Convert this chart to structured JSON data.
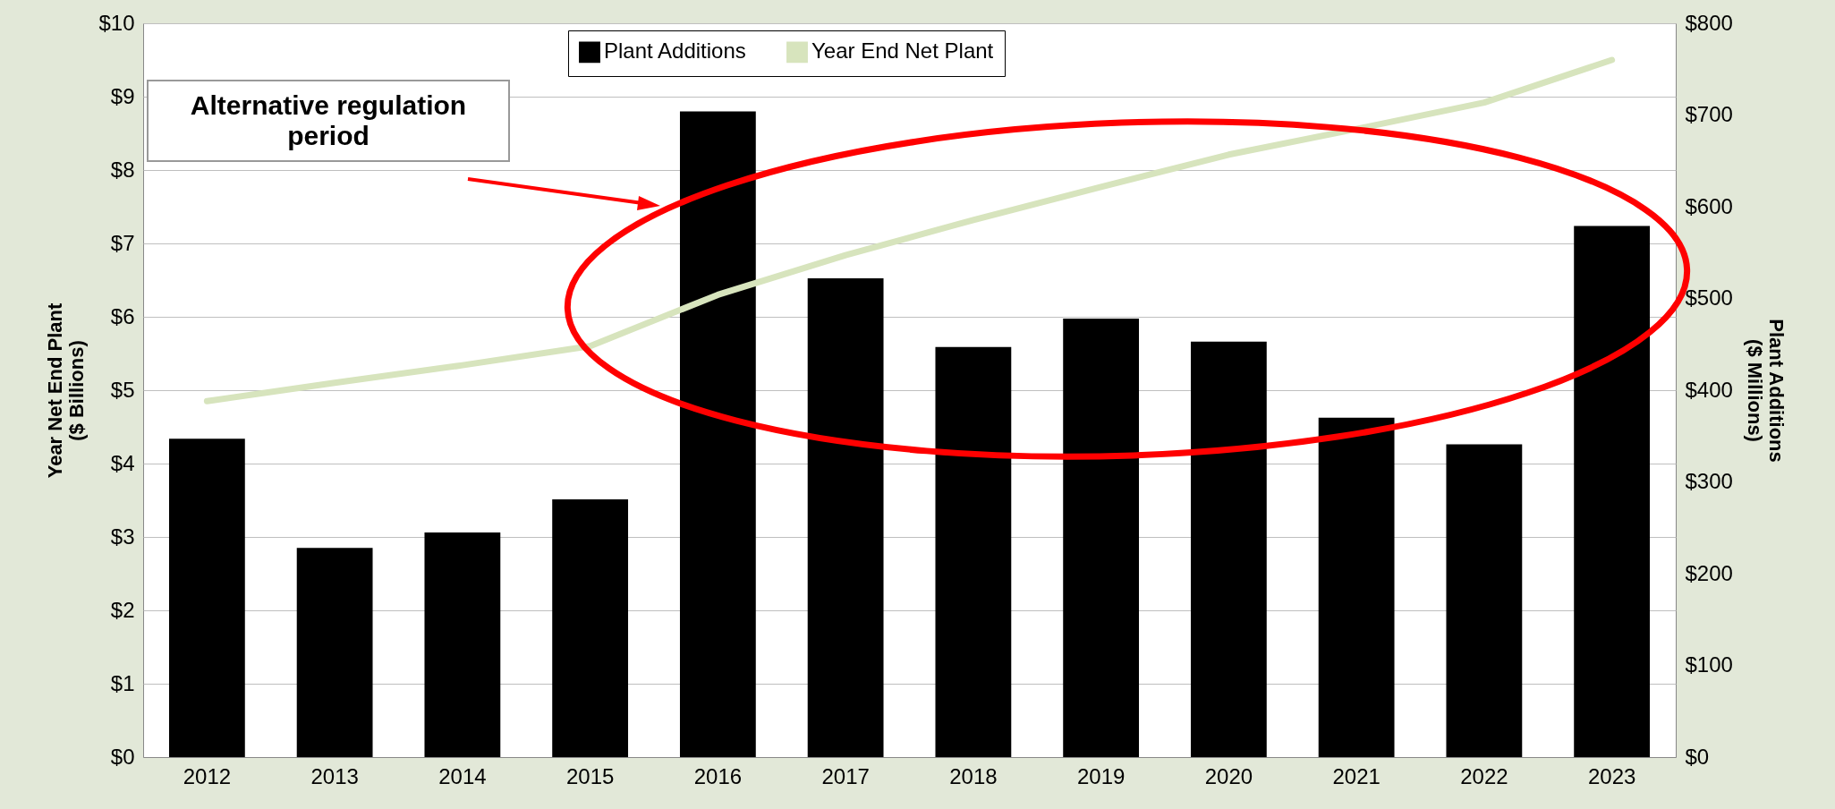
{
  "chart_data": {
    "type": "bar",
    "categories": [
      "2012",
      "2013",
      "2014",
      "2015",
      "2016",
      "2017",
      "2018",
      "2019",
      "2020",
      "2021",
      "2022",
      "2023"
    ],
    "series": [
      {
        "name": "Plant Additions",
        "axis": "y2",
        "color": "#000000",
        "values": [
          347,
          228,
          245,
          281,
          704,
          522,
          447,
          478,
          453,
          370,
          341,
          579
        ]
      },
      {
        "name": "Year End Net Plant",
        "type": "line",
        "color": "#d7e4bd",
        "values": [
          4.85,
          5.1,
          5.34,
          5.6,
          6.3,
          6.84,
          7.32,
          7.77,
          8.21,
          8.56,
          8.92,
          9.5
        ]
      }
    ],
    "ylabel": "Year Net End Plant ($ Billions)",
    "y2label": "Plant Additions ($ Millions)",
    "ylim": [
      0,
      10
    ],
    "yticks": [
      {
        "value": 0,
        "label": "$0"
      },
      {
        "value": 1,
        "label": "$1"
      },
      {
        "value": 2,
        "label": "$2"
      },
      {
        "value": 3,
        "label": "$3"
      },
      {
        "value": 4,
        "label": "$4"
      },
      {
        "value": 5,
        "label": "$5"
      },
      {
        "value": 6,
        "label": "$6"
      },
      {
        "value": 7,
        "label": "$7"
      },
      {
        "value": 8,
        "label": "$8"
      },
      {
        "value": 9,
        "label": "$9"
      },
      {
        "value": 10,
        "label": "$10"
      }
    ],
    "y2lim": [
      0,
      800
    ],
    "y2ticks": [
      {
        "value": 0,
        "label": "$0"
      },
      {
        "value": 100,
        "label": "$100"
      },
      {
        "value": 200,
        "label": "$200"
      },
      {
        "value": 300,
        "label": "$300"
      },
      {
        "value": 400,
        "label": "$400"
      },
      {
        "value": 500,
        "label": "$500"
      },
      {
        "value": 600,
        "label": "$600"
      },
      {
        "value": 700,
        "label": "$700"
      },
      {
        "value": 800,
        "label": "$800"
      }
    ],
    "grid": "y",
    "legend": "top",
    "annotations": [
      "Alternative regulation period"
    ]
  }
}
